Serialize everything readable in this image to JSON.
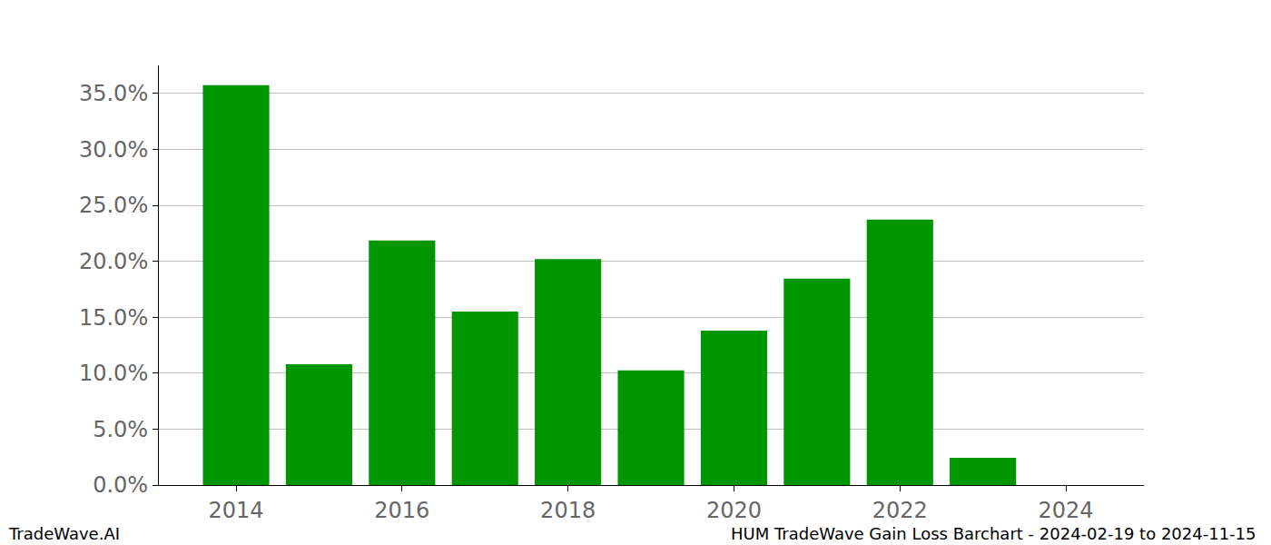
{
  "chart_data": {
    "type": "bar",
    "x": [
      2014,
      2015,
      2016,
      2017,
      2018,
      2019,
      2020,
      2021,
      2022,
      2023
    ],
    "values": [
      35.74,
      10.8,
      21.85,
      15.5,
      20.2,
      10.24,
      13.8,
      18.44,
      23.72,
      2.44
    ],
    "color": "#009600",
    "xlim": [
      2013.07,
      2024.94
    ],
    "xticks": [
      2014,
      2016,
      2018,
      2020,
      2022,
      2024
    ],
    "ylim": [
      0,
      37.5
    ],
    "yticks": [
      {
        "value": 0,
        "label": "0.0%"
      },
      {
        "value": 5,
        "label": "5.0%"
      },
      {
        "value": 10,
        "label": "10.0%"
      },
      {
        "value": 15,
        "label": "15.0%"
      },
      {
        "value": 20,
        "label": "20.0%"
      },
      {
        "value": 25,
        "label": "25.0%"
      },
      {
        "value": 30,
        "label": "30.0%"
      },
      {
        "value": 35,
        "label": "35.0%"
      }
    ],
    "grid": true,
    "annotations": [
      {
        "text": "TradeWave.AI"
      },
      {
        "text": "HUM TradeWave Gain Loss Barchart - 2024-02-19 to 2024-11-15"
      }
    ]
  }
}
